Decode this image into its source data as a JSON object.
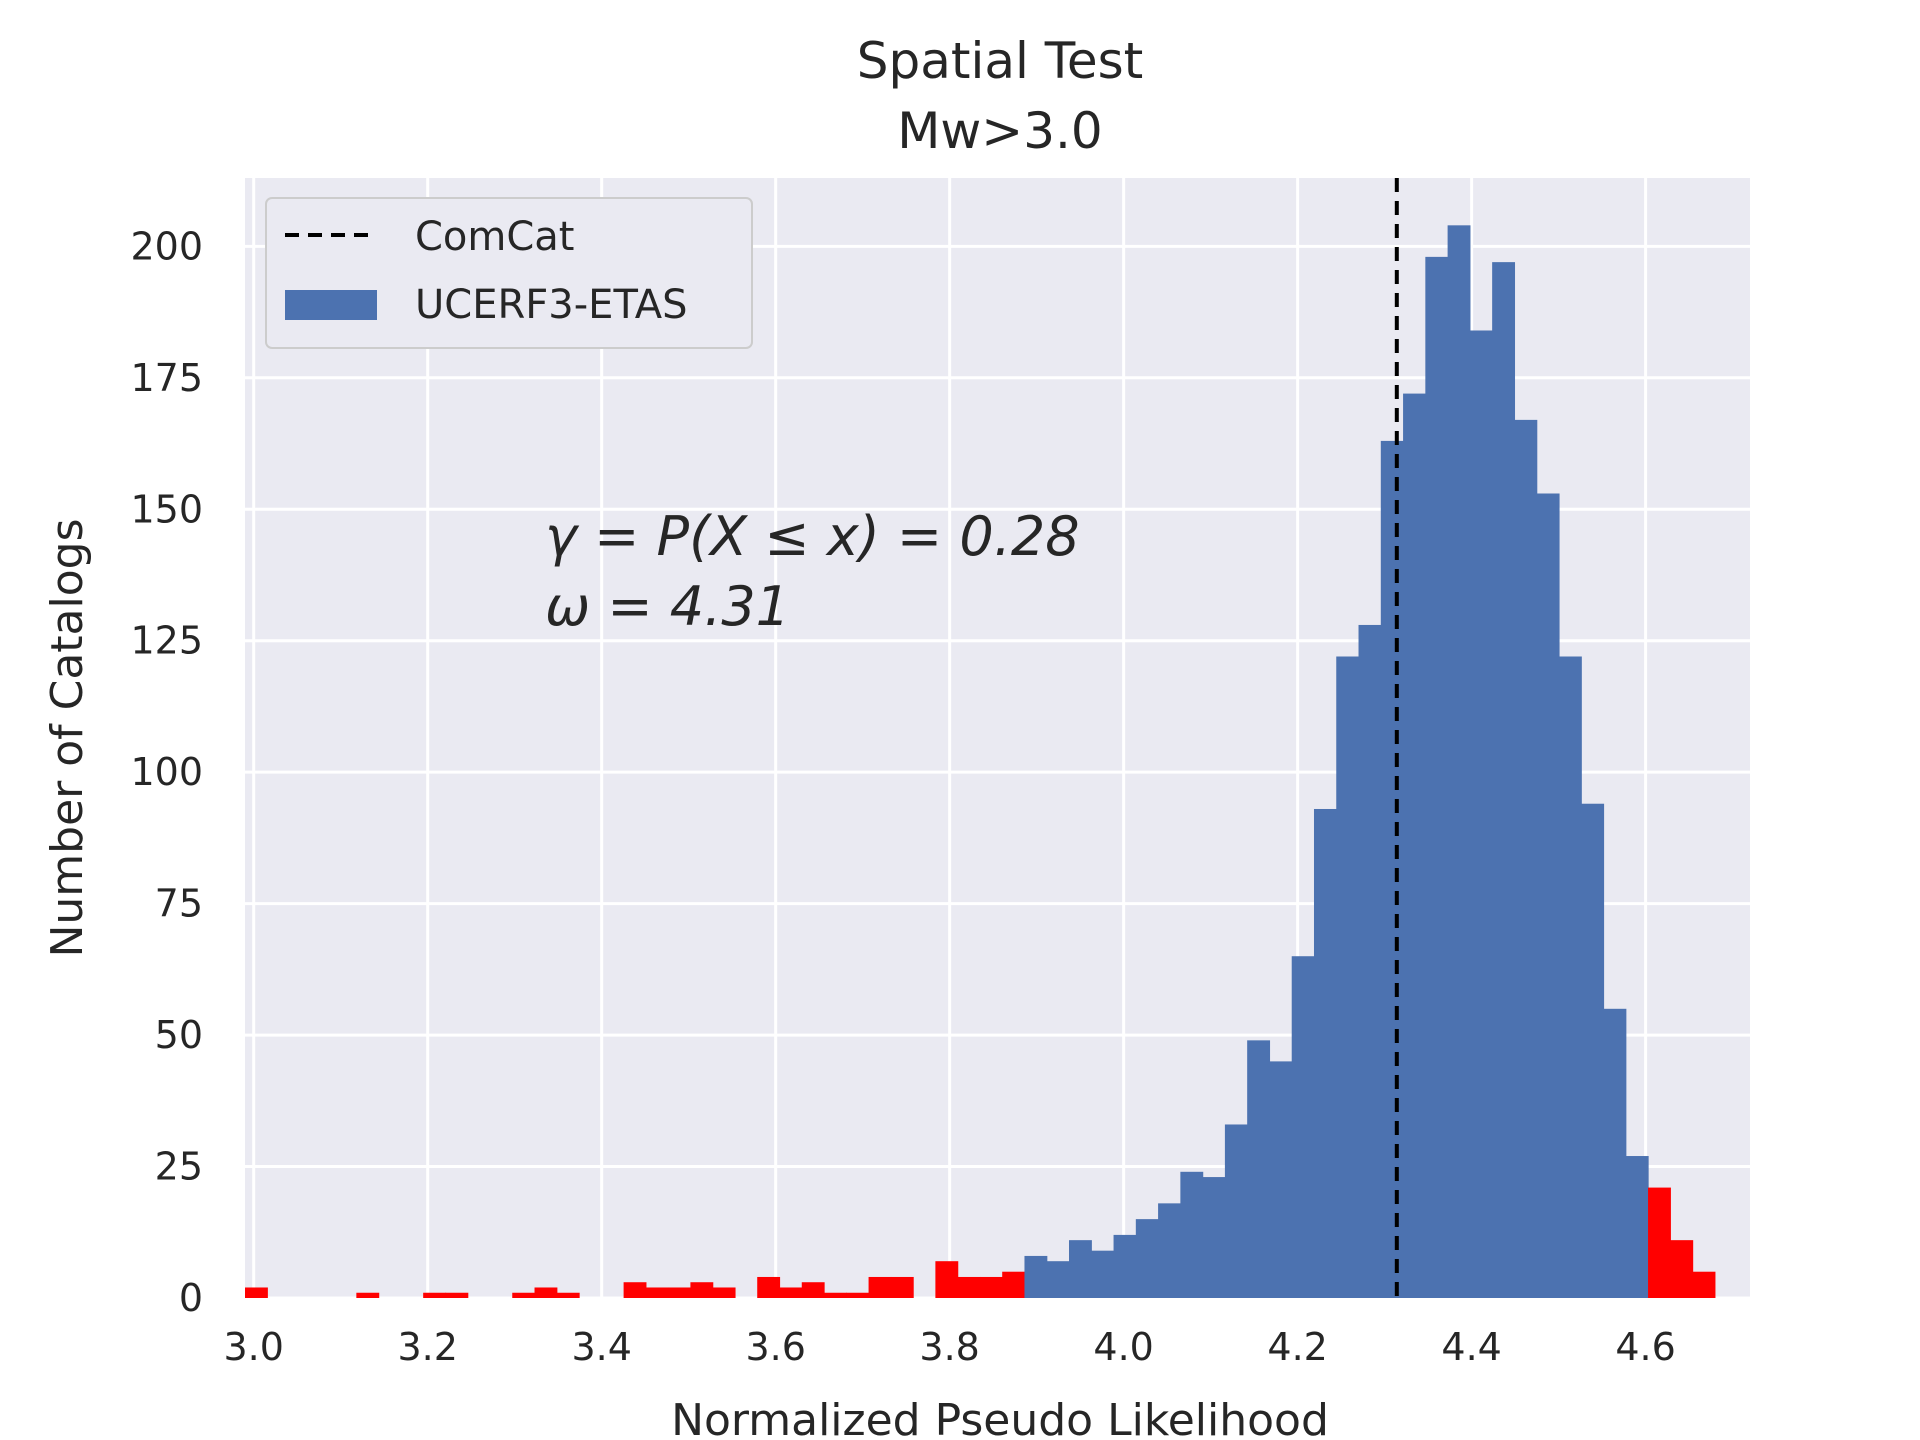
{
  "chart_data": {
    "type": "bar",
    "title": "Spatial Test",
    "subtitle": "Mw>3.0",
    "xlabel": "Normalized Pseudo Likelihood",
    "ylabel": "Number of Catalogs",
    "xlim": [
      2.99,
      4.72
    ],
    "ylim": [
      0,
      213
    ],
    "xticks": [
      3.0,
      3.2,
      3.4,
      3.6,
      3.8,
      4.0,
      4.2,
      4.4,
      4.6
    ],
    "xtick_labels": [
      "3.0",
      "3.2",
      "3.4",
      "3.6",
      "3.8",
      "4.0",
      "4.2",
      "4.4",
      "4.6"
    ],
    "yticks": [
      0,
      25,
      50,
      75,
      100,
      125,
      150,
      175,
      200
    ],
    "ytick_labels": [
      "0",
      "25",
      "50",
      "75",
      "100",
      "125",
      "150",
      "175",
      "200"
    ],
    "grid": true,
    "legend_position": "top-left",
    "legend": {
      "line_label": "ComCat",
      "bar_label": "UCERF3-ETAS"
    },
    "observed_value": 4.314,
    "annotation_lines": [
      "γ = P(X ≤ x) = 0.28",
      "ω = 4.31"
    ],
    "colors": {
      "background": "#EAEAF2",
      "histogram": "#4C72B0",
      "tail": "#FF0000",
      "observed_line": "#000000",
      "grid": "#FFFFFF"
    },
    "bin_start": 2.99,
    "bin_width": 0.0256,
    "bins": [
      {
        "count": 2,
        "tail": true
      },
      {
        "count": 0,
        "tail": true
      },
      {
        "count": 0,
        "tail": true
      },
      {
        "count": 0,
        "tail": true
      },
      {
        "count": 0,
        "tail": true
      },
      {
        "count": 1,
        "tail": true
      },
      {
        "count": 0,
        "tail": true
      },
      {
        "count": 0,
        "tail": true
      },
      {
        "count": 1,
        "tail": true
      },
      {
        "count": 1,
        "tail": true
      },
      {
        "count": 0,
        "tail": true
      },
      {
        "count": 0,
        "tail": true
      },
      {
        "count": 1,
        "tail": true
      },
      {
        "count": 2,
        "tail": true
      },
      {
        "count": 1,
        "tail": true
      },
      {
        "count": 0,
        "tail": true
      },
      {
        "count": 0,
        "tail": true
      },
      {
        "count": 3,
        "tail": true
      },
      {
        "count": 2,
        "tail": true
      },
      {
        "count": 2,
        "tail": true
      },
      {
        "count": 3,
        "tail": true
      },
      {
        "count": 2,
        "tail": true
      },
      {
        "count": 0,
        "tail": true
      },
      {
        "count": 4,
        "tail": true
      },
      {
        "count": 2,
        "tail": true
      },
      {
        "count": 3,
        "tail": true
      },
      {
        "count": 1,
        "tail": true
      },
      {
        "count": 1,
        "tail": true
      },
      {
        "count": 4,
        "tail": true
      },
      {
        "count": 4,
        "tail": true
      },
      {
        "count": 0,
        "tail": true
      },
      {
        "count": 7,
        "tail": true
      },
      {
        "count": 4,
        "tail": true
      },
      {
        "count": 4,
        "tail": true
      },
      {
        "count": 5,
        "tail": true
      },
      {
        "count": 8,
        "tail": false
      },
      {
        "count": 7,
        "tail": false
      },
      {
        "count": 11,
        "tail": false
      },
      {
        "count": 9,
        "tail": false
      },
      {
        "count": 12,
        "tail": false
      },
      {
        "count": 15,
        "tail": false
      },
      {
        "count": 18,
        "tail": false
      },
      {
        "count": 24,
        "tail": false
      },
      {
        "count": 23,
        "tail": false
      },
      {
        "count": 33,
        "tail": false
      },
      {
        "count": 49,
        "tail": false
      },
      {
        "count": 45,
        "tail": false
      },
      {
        "count": 65,
        "tail": false
      },
      {
        "count": 93,
        "tail": false
      },
      {
        "count": 122,
        "tail": false
      },
      {
        "count": 128,
        "tail": false
      },
      {
        "count": 163,
        "tail": false
      },
      {
        "count": 172,
        "tail": false
      },
      {
        "count": 198,
        "tail": false
      },
      {
        "count": 204,
        "tail": false
      },
      {
        "count": 184,
        "tail": false
      },
      {
        "count": 197,
        "tail": false
      },
      {
        "count": 167,
        "tail": false
      },
      {
        "count": 153,
        "tail": false
      },
      {
        "count": 122,
        "tail": false
      },
      {
        "count": 94,
        "tail": false
      },
      {
        "count": 55,
        "tail": false
      },
      {
        "count": 27,
        "tail": false
      },
      {
        "count": 21,
        "tail": true
      },
      {
        "count": 11,
        "tail": true
      },
      {
        "count": 5,
        "tail": true
      }
    ]
  }
}
